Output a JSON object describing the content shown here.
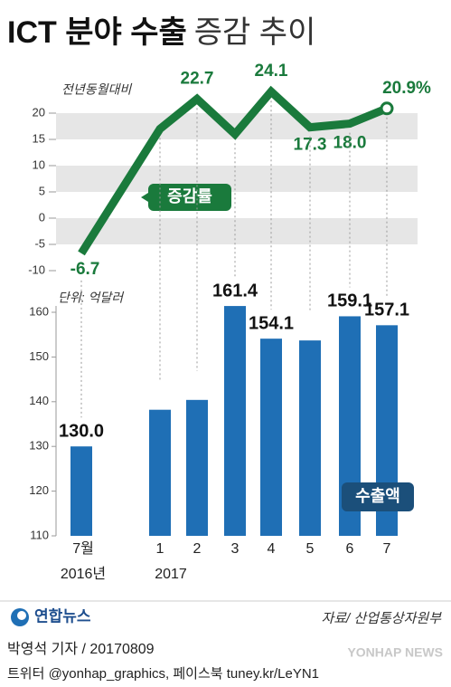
{
  "header": {
    "title_main": "ICT 분야 수출",
    "title_sub": "증감 추이"
  },
  "chart_data": [
    {
      "type": "line",
      "ylabel": "전년동월대비",
      "series_name": "증감률",
      "color": "#1a7a3c",
      "categories": [
        "7월",
        "1",
        "2",
        "3",
        "4",
        "5",
        "6",
        "7"
      ],
      "values": [
        -6.7,
        17.0,
        22.7,
        16.0,
        24.1,
        17.3,
        18.0,
        20.9
      ],
      "value_labels": [
        "-6.7",
        null,
        "22.7",
        null,
        "24.1",
        "17.3",
        "18.0",
        "20.9%"
      ],
      "ylim": [
        -10,
        20
      ],
      "yticks": [
        20,
        15,
        10,
        5,
        0,
        -5,
        -10
      ],
      "grid_bands": true
    },
    {
      "type": "bar",
      "ylabel": "단위: 억달러",
      "series_name": "수출액",
      "color": "#1f6fb5",
      "categories": [
        "7월",
        "1",
        "2",
        "3",
        "4",
        "5",
        "6",
        "7"
      ],
      "year_labels": [
        "2016년",
        "2017",
        null,
        null,
        null,
        null,
        null,
        null
      ],
      "values": [
        130.0,
        138.2,
        140.4,
        161.4,
        154.1,
        153.7,
        159.1,
        157.1
      ],
      "value_labels": [
        "130.0",
        null,
        null,
        "161.4",
        "154.1",
        null,
        "159.1",
        "157.1"
      ],
      "ylim": [
        110,
        160
      ],
      "yticks": [
        160,
        150,
        140,
        130,
        120,
        110
      ]
    }
  ],
  "footer": {
    "logo": "연합뉴스",
    "source": "자료/ 산업통상자원부",
    "byline": "박영석 기자 / 20170809",
    "social": "트위터 @yonhap_graphics, 페이스북 tuney.kr/LeYN1",
    "watermark": "YONHAP NEWS"
  }
}
